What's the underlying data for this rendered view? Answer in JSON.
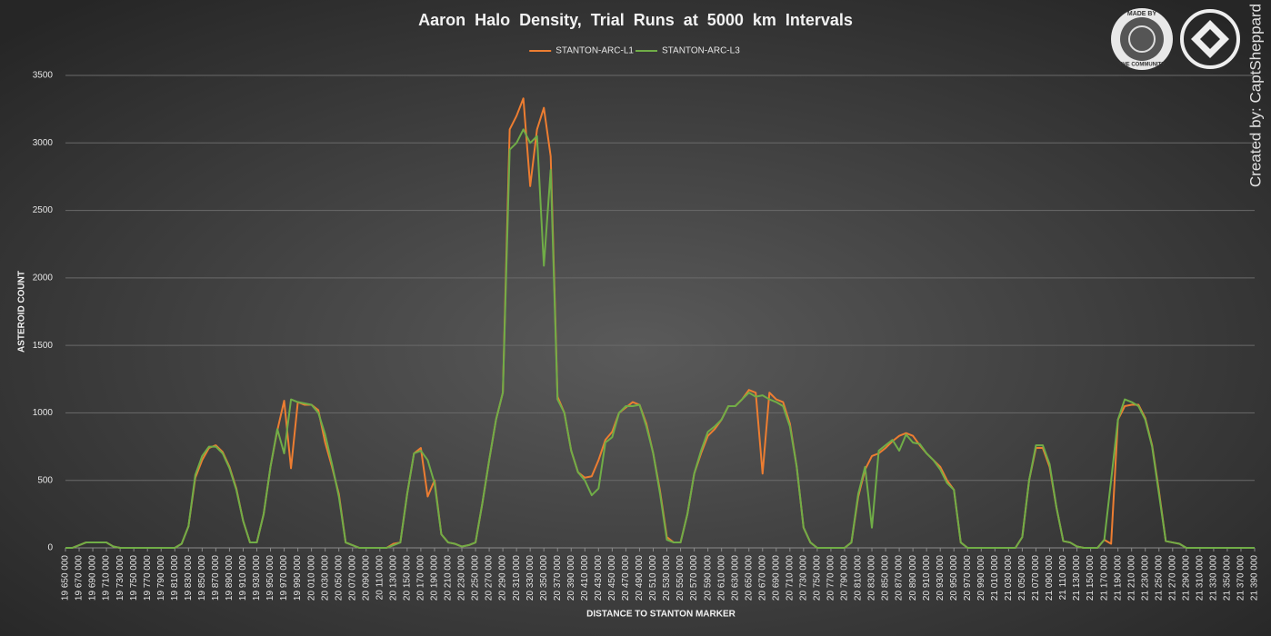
{
  "chart_data": {
    "type": "line",
    "title": "Aaron  Halo  Density,  Trial  Runs  at  5000  km  Intervals",
    "x_label": "DISTANCE TO STANTON MARKER",
    "y_label": "ASTEROID COUNT",
    "credit": "Created by: CaptSheppard",
    "logo_text_top": "MADE BY",
    "logo_text_bottom": "THE COMMUNITY",
    "legend": "top",
    "grid": true,
    "ylim": [
      0,
      3500
    ],
    "yticks": [
      0,
      500,
      1000,
      1500,
      2000,
      2500,
      3000,
      3500
    ],
    "xlim": [
      19650000,
      21390000
    ],
    "xticks": [
      {
        "value": 19650000,
        "label": "19 650 000"
      },
      {
        "value": 19670000,
        "label": "19 670 000"
      },
      {
        "value": 19690000,
        "label": "19 690 000"
      },
      {
        "value": 19710000,
        "label": "19 710 000"
      },
      {
        "value": 19730000,
        "label": "19 730 000"
      },
      {
        "value": 19750000,
        "label": "19 750 000"
      },
      {
        "value": 19770000,
        "label": "19 770 000"
      },
      {
        "value": 19790000,
        "label": "19 790 000"
      },
      {
        "value": 19810000,
        "label": "19 810 000"
      },
      {
        "value": 19830000,
        "label": "19 830 000"
      },
      {
        "value": 19850000,
        "label": "19 850 000"
      },
      {
        "value": 19870000,
        "label": "19 870 000"
      },
      {
        "value": 19890000,
        "label": "19 890 000"
      },
      {
        "value": 19910000,
        "label": "19 910 000"
      },
      {
        "value": 19930000,
        "label": "19 930 000"
      },
      {
        "value": 19950000,
        "label": "19 950 000"
      },
      {
        "value": 19970000,
        "label": "19 970 000"
      },
      {
        "value": 19990000,
        "label": "19 990 000"
      },
      {
        "value": 20010000,
        "label": "20 010 000"
      },
      {
        "value": 20030000,
        "label": "20 030 000"
      },
      {
        "value": 20050000,
        "label": "20 050 000"
      },
      {
        "value": 20070000,
        "label": "20 070 000"
      },
      {
        "value": 20090000,
        "label": "20 090 000"
      },
      {
        "value": 20110000,
        "label": "20 110 000"
      },
      {
        "value": 20130000,
        "label": "20 130 000"
      },
      {
        "value": 20150000,
        "label": "20 150 000"
      },
      {
        "value": 20170000,
        "label": "20 170 000"
      },
      {
        "value": 20190000,
        "label": "20 190 000"
      },
      {
        "value": 20210000,
        "label": "20 210 000"
      },
      {
        "value": 20230000,
        "label": "20 230 000"
      },
      {
        "value": 20250000,
        "label": "20 250 000"
      },
      {
        "value": 20270000,
        "label": "20 270 000"
      },
      {
        "value": 20290000,
        "label": "20 290 000"
      },
      {
        "value": 20310000,
        "label": "20 310 000"
      },
      {
        "value": 20330000,
        "label": "20 330 000"
      },
      {
        "value": 20350000,
        "label": "20 350 000"
      },
      {
        "value": 20370000,
        "label": "20 370 000"
      },
      {
        "value": 20390000,
        "label": "20 390 000"
      },
      {
        "value": 20410000,
        "label": "20 410 000"
      },
      {
        "value": 20430000,
        "label": "20 430 000"
      },
      {
        "value": 20450000,
        "label": "20 450 000"
      },
      {
        "value": 20470000,
        "label": "20 470 000"
      },
      {
        "value": 20490000,
        "label": "20 490 000"
      },
      {
        "value": 20510000,
        "label": "20 510 000"
      },
      {
        "value": 20530000,
        "label": "20 530 000"
      },
      {
        "value": 20550000,
        "label": "20 550 000"
      },
      {
        "value": 20570000,
        "label": "20 570 000"
      },
      {
        "value": 20590000,
        "label": "20 590 000"
      },
      {
        "value": 20610000,
        "label": "20 610 000"
      },
      {
        "value": 20630000,
        "label": "20 630 000"
      },
      {
        "value": 20650000,
        "label": "20 650 000"
      },
      {
        "value": 20670000,
        "label": "20 670 000"
      },
      {
        "value": 20690000,
        "label": "20 690 000"
      },
      {
        "value": 20710000,
        "label": "20 710 000"
      },
      {
        "value": 20730000,
        "label": "20 730 000"
      },
      {
        "value": 20750000,
        "label": "20 750 000"
      },
      {
        "value": 20770000,
        "label": "20 770 000"
      },
      {
        "value": 20790000,
        "label": "20 790 000"
      },
      {
        "value": 20810000,
        "label": "20 810 000"
      },
      {
        "value": 20830000,
        "label": "20 830 000"
      },
      {
        "value": 20850000,
        "label": "20 850 000"
      },
      {
        "value": 20870000,
        "label": "20 870 000"
      },
      {
        "value": 20890000,
        "label": "20 890 000"
      },
      {
        "value": 20910000,
        "label": "20 910 000"
      },
      {
        "value": 20930000,
        "label": "20 930 000"
      },
      {
        "value": 20950000,
        "label": "20 950 000"
      },
      {
        "value": 20970000,
        "label": "20 970 000"
      },
      {
        "value": 20990000,
        "label": "20 990 000"
      },
      {
        "value": 21010000,
        "label": "21 010 000"
      },
      {
        "value": 21030000,
        "label": "21 030 000"
      },
      {
        "value": 21050000,
        "label": "21 050 000"
      },
      {
        "value": 21070000,
        "label": "21 070 000"
      },
      {
        "value": 21090000,
        "label": "21 090 000"
      },
      {
        "value": 21110000,
        "label": "21 110 000"
      },
      {
        "value": 21130000,
        "label": "21 130 000"
      },
      {
        "value": 21150000,
        "label": "21 150 000"
      },
      {
        "value": 21170000,
        "label": "21 170 000"
      },
      {
        "value": 21190000,
        "label": "21 190 000"
      },
      {
        "value": 21210000,
        "label": "21 210 000"
      },
      {
        "value": 21230000,
        "label": "21 230 000"
      },
      {
        "value": 21250000,
        "label": "21 250 000"
      },
      {
        "value": 21270000,
        "label": "21 270 000"
      },
      {
        "value": 21290000,
        "label": "21 290 000"
      },
      {
        "value": 21310000,
        "label": "21 310 000"
      },
      {
        "value": 21330000,
        "label": "21 330 000"
      },
      {
        "value": 21350000,
        "label": "21 350 000"
      },
      {
        "value": 21370000,
        "label": "21 370 000"
      },
      {
        "value": 21390000,
        "label": "21 390 000"
      }
    ],
    "x": [
      19650000,
      19660000,
      19670000,
      19680000,
      19690000,
      19700000,
      19710000,
      19720000,
      19730000,
      19740000,
      19750000,
      19760000,
      19770000,
      19780000,
      19790000,
      19800000,
      19810000,
      19820000,
      19830000,
      19840000,
      19850000,
      19860000,
      19870000,
      19880000,
      19890000,
      19900000,
      19910000,
      19920000,
      19930000,
      19940000,
      19950000,
      19960000,
      19970000,
      19980000,
      19990000,
      20000000,
      20010000,
      20020000,
      20030000,
      20040000,
      20050000,
      20060000,
      20070000,
      20080000,
      20090000,
      20100000,
      20110000,
      20120000,
      20130000,
      20140000,
      20150000,
      20160000,
      20170000,
      20180000,
      20190000,
      20200000,
      20210000,
      20220000,
      20230000,
      20240000,
      20250000,
      20260000,
      20270000,
      20280000,
      20290000,
      20300000,
      20310000,
      20320000,
      20330000,
      20340000,
      20350000,
      20360000,
      20370000,
      20380000,
      20390000,
      20400000,
      20410000,
      20420000,
      20430000,
      20440000,
      20450000,
      20460000,
      20470000,
      20480000,
      20490000,
      20500000,
      20510000,
      20520000,
      20530000,
      20540000,
      20550000,
      20560000,
      20570000,
      20580000,
      20590000,
      20600000,
      20610000,
      20620000,
      20630000,
      20640000,
      20650000,
      20660000,
      20670000,
      20680000,
      20690000,
      20700000,
      20710000,
      20720000,
      20730000,
      20740000,
      20750000,
      20760000,
      20770000,
      20780000,
      20790000,
      20800000,
      20810000,
      20820000,
      20830000,
      20840000,
      20850000,
      20860000,
      20870000,
      20880000,
      20890000,
      20900000,
      20910000,
      20920000,
      20930000,
      20940000,
      20950000,
      20960000,
      20970000,
      20980000,
      20990000,
      21000000,
      21010000,
      21020000,
      21030000,
      21040000,
      21050000,
      21060000,
      21070000,
      21080000,
      21090000,
      21100000,
      21110000,
      21120000,
      21130000,
      21140000,
      21150000,
      21160000,
      21170000,
      21180000,
      21190000,
      21200000,
      21210000,
      21220000,
      21230000,
      21240000,
      21250000,
      21260000,
      21270000,
      21280000,
      21290000,
      21300000,
      21310000,
      21320000,
      21330000,
      21340000,
      21350000,
      21360000,
      21370000,
      21380000,
      21390000
    ],
    "series": [
      {
        "name": "STANTON-ARC-L1",
        "color": "#ed7d31",
        "values": [
          0,
          0,
          20,
          40,
          40,
          40,
          40,
          10,
          0,
          0,
          0,
          0,
          0,
          0,
          0,
          0,
          0,
          30,
          160,
          520,
          650,
          740,
          760,
          710,
          600,
          440,
          200,
          40,
          40,
          250,
          600,
          870,
          1090,
          590,
          1080,
          1060,
          1060,
          1020,
          780,
          600,
          400,
          40,
          20,
          0,
          0,
          0,
          0,
          0,
          30,
          40,
          400,
          700,
          740,
          380,
          500,
          100,
          40,
          30,
          10,
          20,
          40,
          330,
          650,
          950,
          1150,
          3100,
          3200,
          3330,
          2680,
          3100,
          3260,
          2900,
          1120,
          1000,
          720,
          560,
          520,
          530,
          650,
          800,
          860,
          1000,
          1040,
          1080,
          1060,
          920,
          700,
          420,
          80,
          40,
          40,
          250,
          550,
          700,
          830,
          880,
          950,
          1050,
          1050,
          1100,
          1170,
          1150,
          550,
          1150,
          1100,
          1080,
          920,
          600,
          150,
          40,
          0,
          0,
          0,
          0,
          0,
          40,
          380,
          580,
          680,
          700,
          740,
          790,
          830,
          850,
          830,
          760,
          700,
          650,
          600,
          500,
          430,
          40,
          0,
          0,
          0,
          0,
          0,
          0,
          0,
          0,
          80,
          500,
          740,
          740,
          600,
          300,
          50,
          40,
          10,
          0,
          0,
          0,
          60,
          30,
          950,
          1050,
          1060,
          1060,
          960,
          760,
          420,
          50,
          40,
          30,
          0,
          0,
          0,
          0,
          0,
          0,
          0,
          0,
          0,
          0,
          0
        ]
      },
      {
        "name": "STANTON-ARC-L3",
        "color": "#70ad47",
        "values": [
          0,
          0,
          20,
          40,
          40,
          40,
          40,
          10,
          0,
          0,
          0,
          0,
          0,
          0,
          0,
          0,
          0,
          30,
          160,
          540,
          680,
          750,
          750,
          700,
          590,
          430,
          200,
          40,
          40,
          250,
          600,
          880,
          700,
          1100,
          1080,
          1070,
          1060,
          1000,
          840,
          620,
          380,
          40,
          20,
          0,
          0,
          0,
          0,
          0,
          20,
          40,
          400,
          700,
          720,
          650,
          480,
          100,
          40,
          30,
          10,
          20,
          40,
          330,
          650,
          950,
          1150,
          2950,
          3000,
          3100,
          3000,
          3050,
          2090,
          2800,
          1100,
          1000,
          720,
          560,
          500,
          390,
          440,
          780,
          820,
          1000,
          1050,
          1050,
          1060,
          900,
          700,
          400,
          60,
          40,
          40,
          250,
          550,
          720,
          860,
          900,
          950,
          1050,
          1050,
          1100,
          1150,
          1120,
          1130,
          1100,
          1080,
          1050,
          900,
          600,
          150,
          40,
          0,
          0,
          0,
          0,
          0,
          40,
          400,
          600,
          150,
          720,
          760,
          800,
          720,
          840,
          780,
          770,
          700,
          650,
          580,
          480,
          430,
          40,
          0,
          0,
          0,
          0,
          0,
          0,
          0,
          0,
          80,
          500,
          760,
          760,
          620,
          300,
          50,
          40,
          10,
          0,
          0,
          0,
          60,
          500,
          950,
          1100,
          1080,
          1050,
          950,
          750,
          400,
          50,
          40,
          30,
          0,
          0,
          0,
          0,
          0,
          0,
          0,
          0,
          0,
          0,
          0
        ]
      }
    ]
  }
}
